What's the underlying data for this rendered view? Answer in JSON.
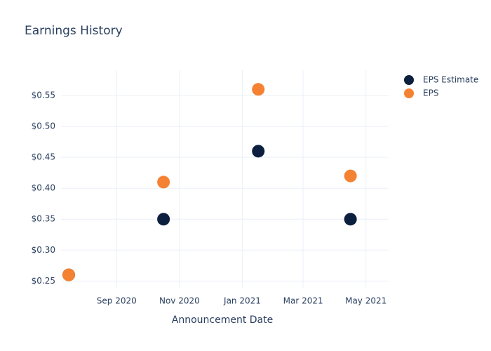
{
  "chart_data": {
    "type": "scatter",
    "title": "Earnings History",
    "x_label": "Announcement Date",
    "x": [
      "2020-07",
      "2020-10",
      "2021-01",
      "2021-04"
    ],
    "series": [
      {
        "name": "EPS Estimate",
        "color": "#0d1f3f",
        "values": [
          0.26,
          0.35,
          0.46,
          0.35
        ]
      },
      {
        "name": "EPS",
        "color": "#f58232",
        "values": [
          0.26,
          0.41,
          0.56,
          0.42
        ]
      }
    ],
    "xlim": [
      "2020-07-09",
      "2021-05-23"
    ],
    "xticks": [
      {
        "value": "2020-09",
        "label": "Sep 2020"
      },
      {
        "value": "2020-11",
        "label": "Nov 2020"
      },
      {
        "value": "2021-01",
        "label": "Jan 2021"
      },
      {
        "value": "2021-03",
        "label": "Mar 2021"
      },
      {
        "value": "2021-05",
        "label": "May 2021"
      }
    ],
    "ylim": [
      0.239,
      0.591
    ],
    "yticks": [
      {
        "value": 0.25,
        "label": "$0.25"
      },
      {
        "value": 0.3,
        "label": "$0.30"
      },
      {
        "value": 0.35,
        "label": "$0.35"
      },
      {
        "value": 0.4,
        "label": "$0.40"
      },
      {
        "value": 0.45,
        "label": "$0.45"
      },
      {
        "value": 0.5,
        "label": "$0.50"
      },
      {
        "value": 0.55,
        "label": "$0.55"
      }
    ],
    "grid": true,
    "legend": "top-right"
  }
}
